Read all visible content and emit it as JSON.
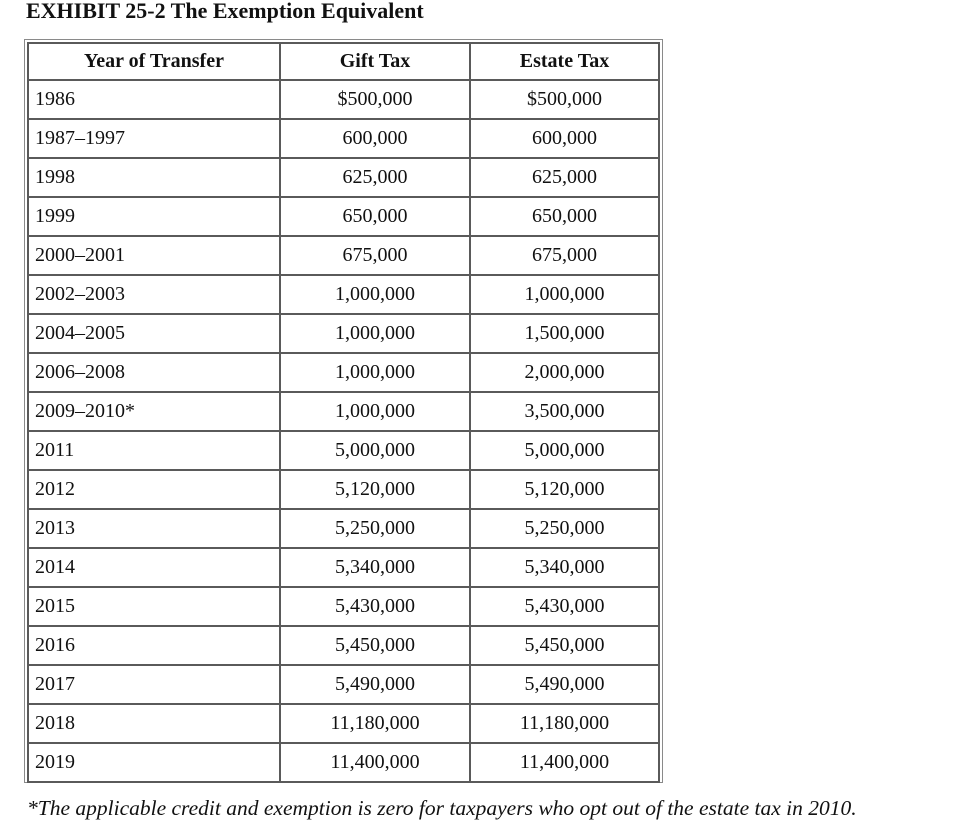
{
  "title": "EXHIBIT 25-2 The Exemption Equivalent",
  "table": {
    "headers": [
      "Year of Transfer",
      "Gift Tax",
      "Estate Tax"
    ],
    "rows": [
      {
        "year": "1986",
        "gift": "$500,000",
        "estate": "$500,000"
      },
      {
        "year": "1987–1997",
        "gift": "600,000",
        "estate": "600,000"
      },
      {
        "year": "1998",
        "gift": "625,000",
        "estate": "625,000"
      },
      {
        "year": "1999",
        "gift": "650,000",
        "estate": "650,000"
      },
      {
        "year": "2000–2001",
        "gift": "675,000",
        "estate": "675,000"
      },
      {
        "year": "2002–2003",
        "gift": "1,000,000",
        "estate": "1,000,000"
      },
      {
        "year": "2004–2005",
        "gift": "1,000,000",
        "estate": "1,500,000"
      },
      {
        "year": "2006–2008",
        "gift": "1,000,000",
        "estate": "2,000,000"
      },
      {
        "year": "2009–2010*",
        "gift": "1,000,000",
        "estate": "3,500,000"
      },
      {
        "year": "2011",
        "gift": "5,000,000",
        "estate": "5,000,000"
      },
      {
        "year": "2012",
        "gift": "5,120,000",
        "estate": "5,120,000"
      },
      {
        "year": "2013",
        "gift": "5,250,000",
        "estate": "5,250,000"
      },
      {
        "year": "2014",
        "gift": "5,340,000",
        "estate": "5,340,000"
      },
      {
        "year": "2015",
        "gift": "5,430,000",
        "estate": "5,430,000"
      },
      {
        "year": "2016",
        "gift": "5,450,000",
        "estate": "5,450,000"
      },
      {
        "year": "2017",
        "gift": "5,490,000",
        "estate": "5,490,000"
      },
      {
        "year": "2018",
        "gift": "11,180,000",
        "estate": "11,180,000"
      },
      {
        "year": "2019",
        "gift": "11,400,000",
        "estate": "11,400,000"
      }
    ]
  },
  "footnote": "*The applicable credit and exemption is zero for taxpayers who opt out of the estate tax in 2010."
}
